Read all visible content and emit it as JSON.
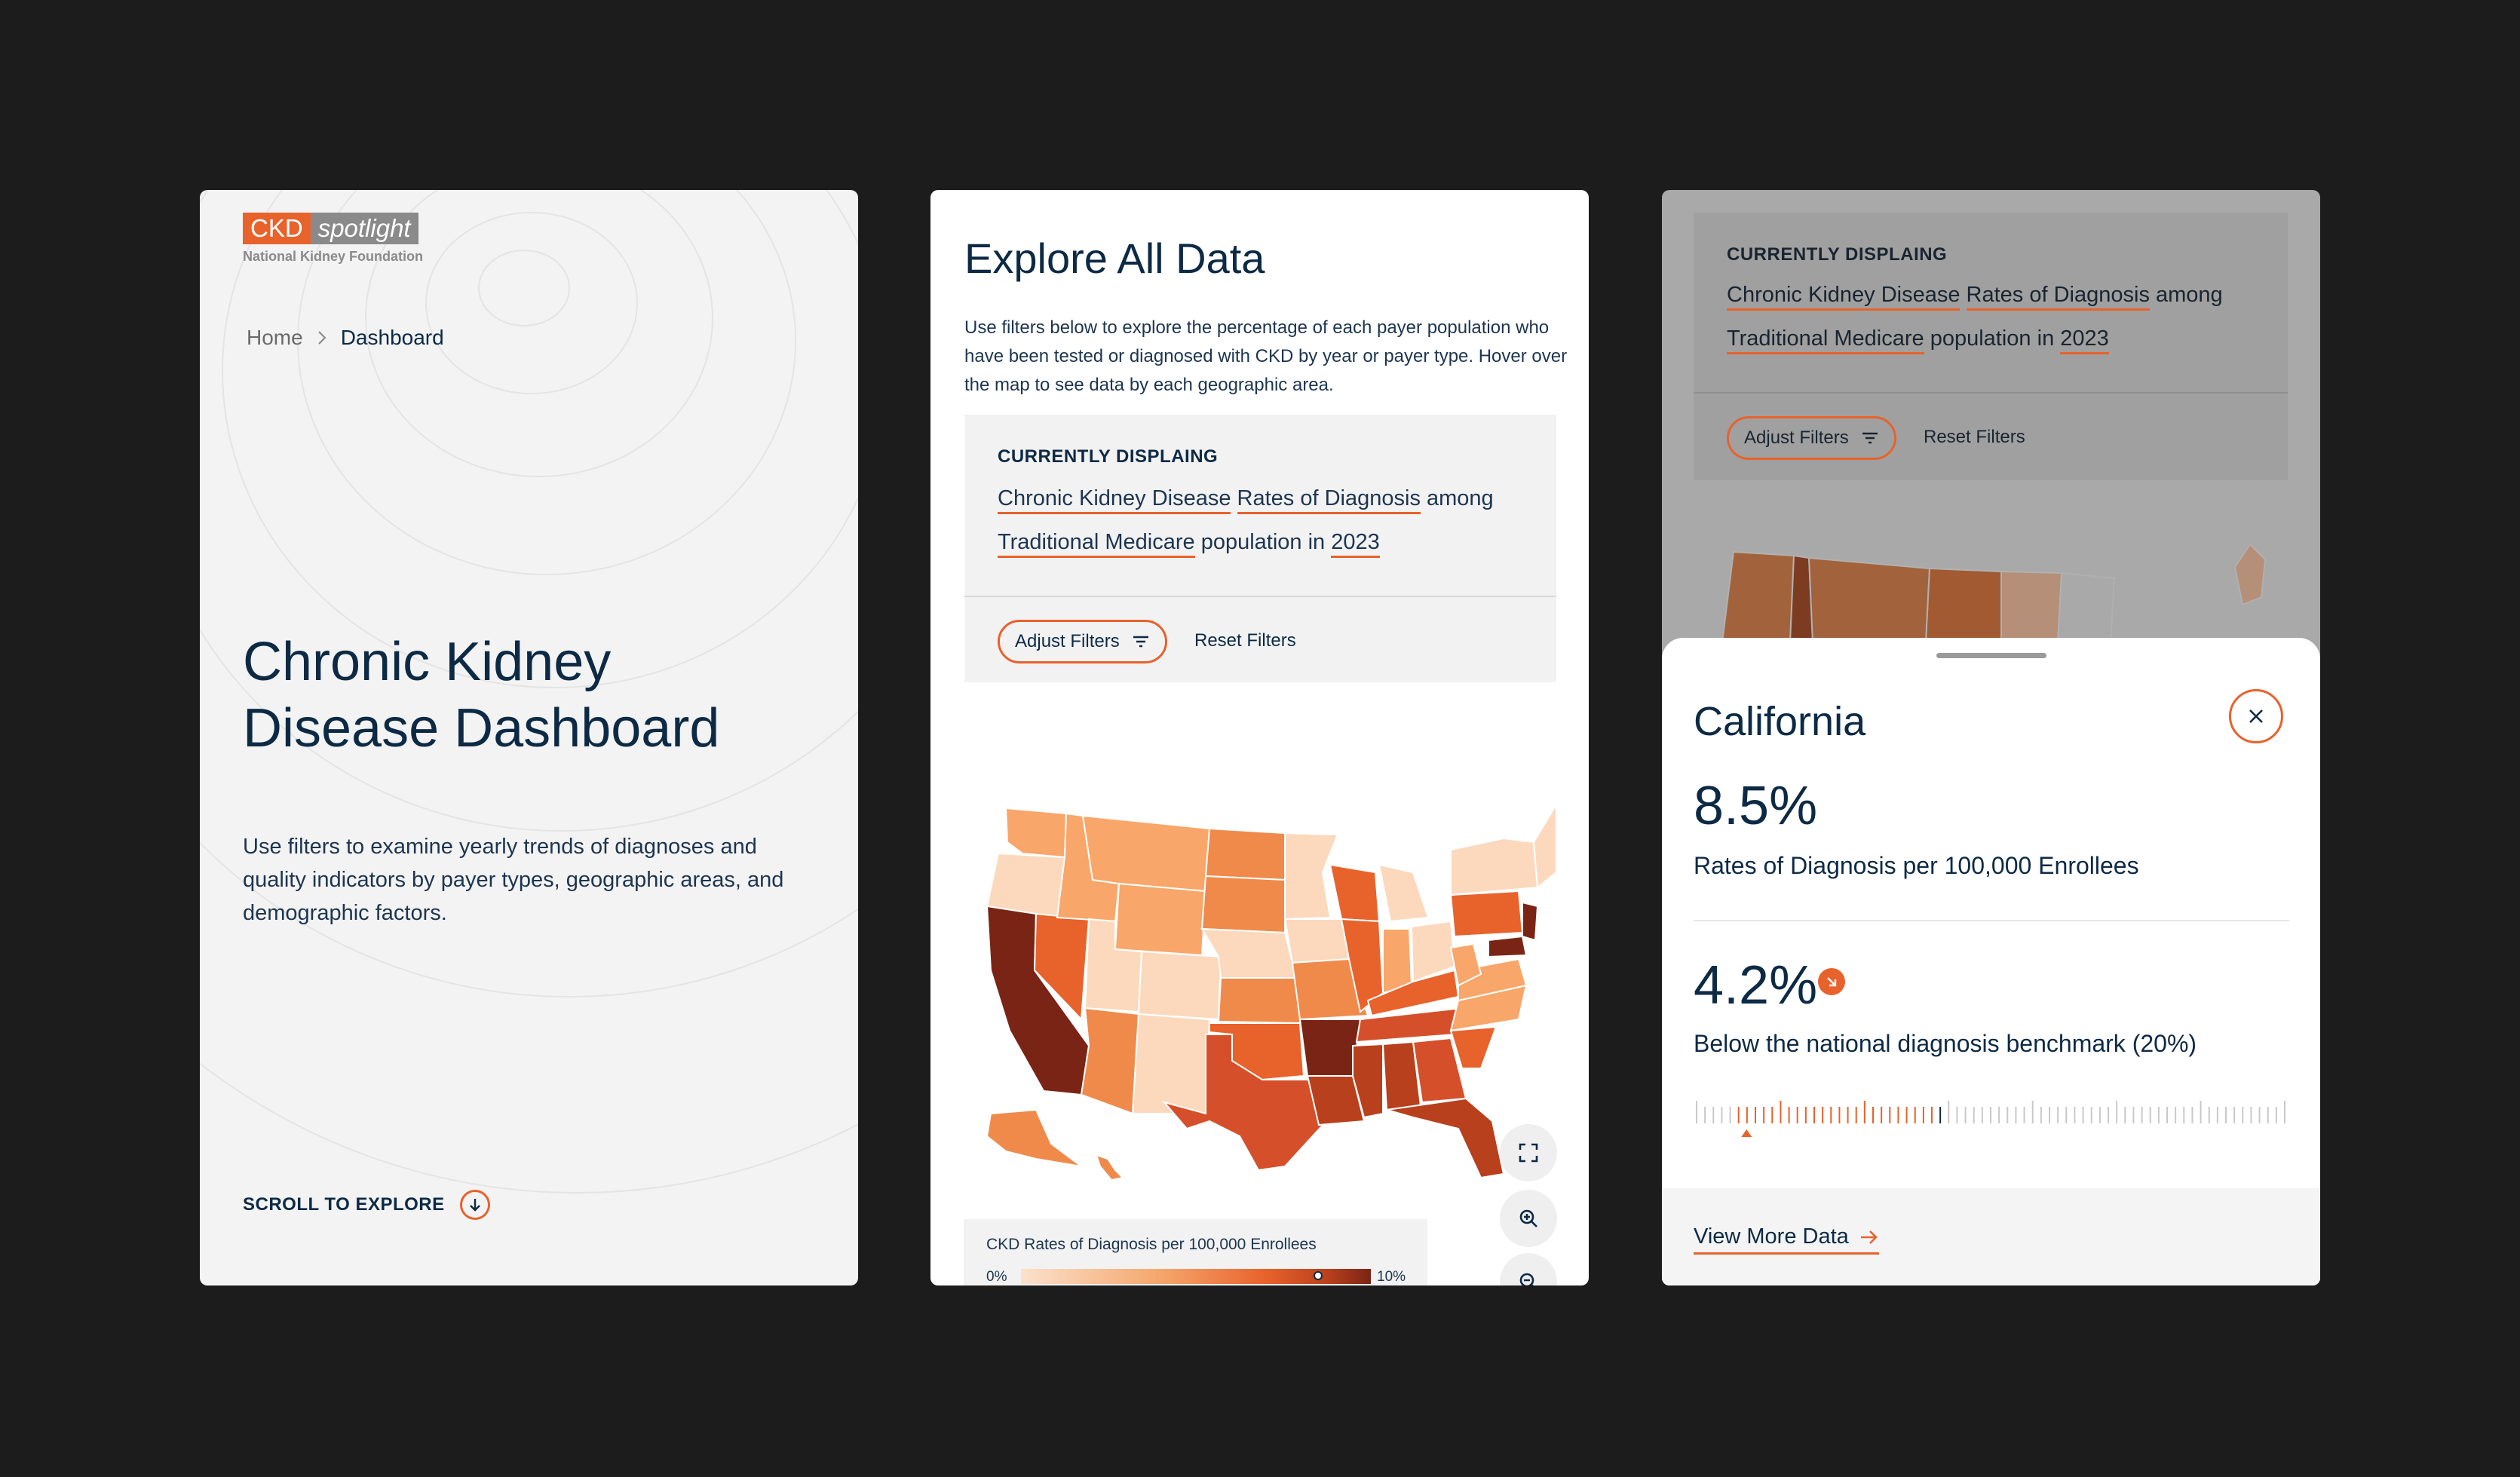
{
  "brand": {
    "ckd": "CKD",
    "spotlight": "spotlight",
    "org": "National Kidney Foundation"
  },
  "landing": {
    "breadcrumb_home": "Home",
    "breadcrumb_current": "Dashboard",
    "title_line1": "Chronic Kidney",
    "title_line2": "Disease Dashboard",
    "description": "Use filters to examine yearly trends of diagnoses and quality indicators by payer types, geographic areas, and demographic factors.",
    "scroll_label": "SCROLL TO EXPLORE",
    "scroll_icon": "arrow-down-icon"
  },
  "explore": {
    "title": "Explore All Data",
    "description": "Use filters below to explore the percentage of each payer population who have been tested or diagnosed with CKD by year or payer type. Hover over the map to see data by each geographic area.",
    "currently_label": "CURRENTLY DISPLAING",
    "filter_disease": "Chronic Kidney Disease",
    "filter_metric": "Rates of Diagnosis",
    "word_among": "among",
    "filter_population": "Traditional Medicare",
    "word_population_in": "population in",
    "filter_year": "2023",
    "adjust_filters": "Adjust Filters",
    "reset_filters": "Reset Filters",
    "map_controls": [
      "fullscreen-icon",
      "zoom-in-icon",
      "zoom-out-icon"
    ],
    "legend_title": "CKD Rates of Diagnosis per 100,000 Enrollees",
    "legend_min": "0%",
    "legend_max": "10%",
    "legend_marker_fraction": 0.85
  },
  "detail": {
    "currently_label": "CURRENTLY DISPLAING",
    "filter_disease": "Chronic Kidney Disease",
    "filter_metric": "Rates of Diagnosis",
    "word_among": "among",
    "filter_population": "Traditional Medicare",
    "word_population": "population",
    "word_in": "in",
    "filter_year": "2023",
    "adjust_filters": "Adjust Filters",
    "reset_filters": "Reset Filters",
    "state": "California",
    "close_icon": "close-icon",
    "rate_value": "8.5%",
    "rate_label": "Rates of Diagnosis per 100,000 Enrollees",
    "benchmark_value": "4.2%",
    "benchmark_trend_icon": "arrow-down-right-icon",
    "benchmark_label": "Below the national diagnosis benchmark (20%)",
    "benchmark_fraction": 0.42,
    "view_more": "View More Data"
  },
  "colors": {
    "accent": "#e8622c",
    "navy": "#0d2a45",
    "map_scale": [
      "#fcd9bd",
      "#f9a66a",
      "#f08a4b",
      "#e8622c",
      "#d5502a",
      "#b8401c",
      "#7a2415"
    ]
  }
}
